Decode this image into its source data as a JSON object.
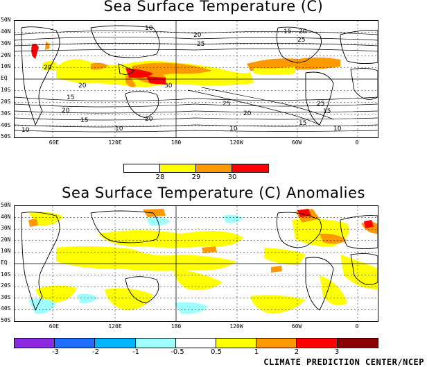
{
  "map1": {
    "title": "Sea Surface Temperature (C)",
    "contour_labels": [
      "10",
      "20",
      "25",
      "15",
      "20",
      "25",
      "30",
      "20",
      "15",
      "20",
      "25",
      "25",
      "15",
      "20",
      "15",
      "20",
      "10",
      "10",
      "15",
      "10",
      "10",
      "20"
    ],
    "colorbar": {
      "labels": [
        "28",
        "29",
        "30"
      ],
      "colors": [
        "#ffffff",
        "#ffff00",
        "#ff9900",
        "#ff0000"
      ]
    }
  },
  "map2": {
    "title": "Sea Surface Temperature (C) Anomalies",
    "colorbar": {
      "labels": [
        "-3",
        "-2",
        "-1",
        "-0.5",
        "0.5",
        "1",
        "2",
        "3"
      ],
      "colors": [
        "#8a2be2",
        "#1e6fff",
        "#00b4ff",
        "#a0ffff",
        "#ffffff",
        "#ffff00",
        "#ff9900",
        "#ff0000",
        "#8b0000"
      ]
    }
  },
  "axes": {
    "lat_labels": [
      "50N",
      "40N",
      "30N",
      "20N",
      "10N",
      "EQ",
      "10S",
      "20S",
      "30S",
      "40S",
      "50S"
    ],
    "lon_labels": [
      "60E",
      "120E",
      "180",
      "120W",
      "60W",
      "0"
    ]
  },
  "credit": "CLIMATE PREDICTION CENTER/NCEP"
}
